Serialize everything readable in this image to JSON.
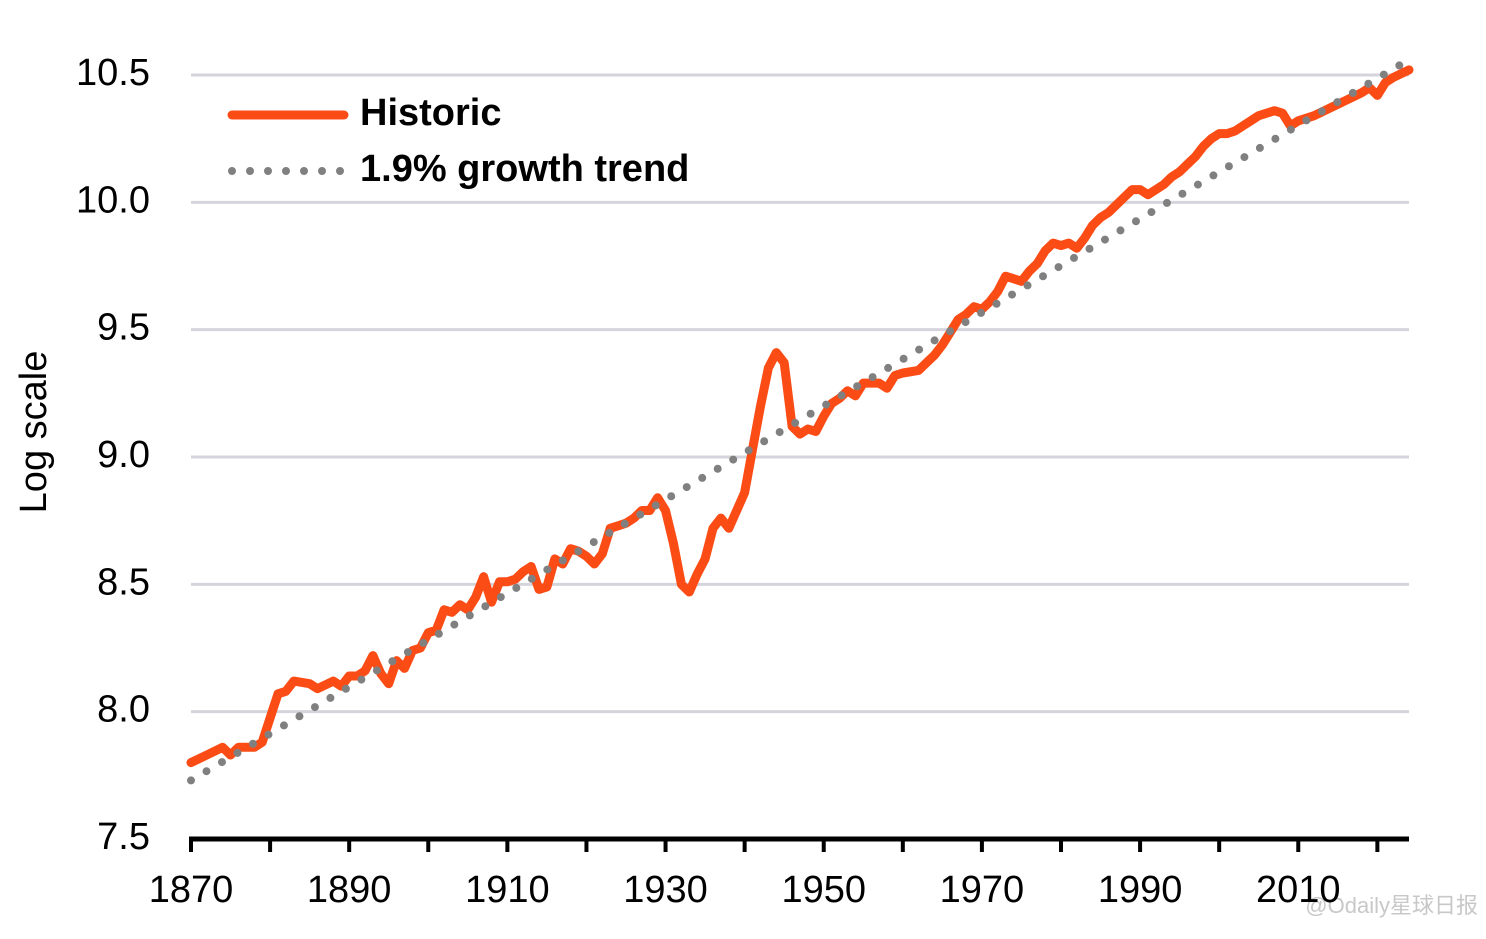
{
  "chart_data": {
    "type": "line",
    "y_label": "Log scale",
    "xlim": [
      1870,
      2024
    ],
    "ylim": [
      7.5,
      10.5
    ],
    "xticks": [
      1870,
      1890,
      1910,
      1930,
      1950,
      1970,
      1990,
      2010
    ],
    "x_minor_ticks": [
      1880,
      1900,
      1920,
      1940,
      1960,
      1980,
      2000,
      2020
    ],
    "yticks": [
      7.5,
      {
        "value": 8,
        "label": "8.0"
      },
      8.5,
      {
        "value": 9,
        "label": "9.0"
      },
      9.5,
      {
        "value": 10,
        "label": "10.0"
      },
      10.5
    ],
    "grid": true,
    "legend": "upper left",
    "watermark": "@Odaily星球日报",
    "series": [
      {
        "name": "Historic",
        "color": "#fc4c16",
        "style": "solid",
        "x": [
          1870,
          1872,
          1874,
          1875,
          1876,
          1878,
          1879,
          1881,
          1882,
          1883,
          1885,
          1886,
          1888,
          1889,
          1890,
          1891,
          1892,
          1893,
          1894,
          1895,
          1896,
          1897,
          1898,
          1899,
          1900,
          1901,
          1902,
          1903,
          1904,
          1905,
          1906,
          1907,
          1908,
          1909,
          1910,
          1911,
          1912,
          1913,
          1914,
          1915,
          1916,
          1917,
          1918,
          1919,
          1920,
          1921,
          1922,
          1923,
          1924,
          1925,
          1926,
          1927,
          1928,
          1929,
          1930,
          1931,
          1932,
          1933,
          1934,
          1935,
          1936,
          1937,
          1938,
          1939,
          1940,
          1941,
          1942,
          1943,
          1944,
          1945,
          1946,
          1947,
          1948,
          1949,
          1950,
          1951,
          1952,
          1953,
          1954,
          1955,
          1956,
          1957,
          1958,
          1959,
          1960,
          1962,
          1963,
          1964,
          1965,
          1966,
          1967,
          1968,
          1969,
          1970,
          1971,
          1972,
          1973,
          1974,
          1975,
          1976,
          1977,
          1978,
          1979,
          1980,
          1981,
          1982,
          1983,
          1984,
          1985,
          1986,
          1987,
          1988,
          1989,
          1990,
          1991,
          1992,
          1993,
          1994,
          1995,
          1996,
          1997,
          1998,
          1999,
          2000,
          2001,
          2002,
          2003,
          2004,
          2005,
          2006,
          2007,
          2008,
          2009,
          2010,
          2012,
          2014,
          2016,
          2018,
          2019,
          2020,
          2021,
          2022,
          2024
        ],
        "values": [
          7.8,
          7.83,
          7.86,
          7.83,
          7.86,
          7.86,
          7.88,
          8.07,
          8.08,
          8.12,
          8.11,
          8.09,
          8.12,
          8.1,
          8.14,
          8.14,
          8.16,
          8.22,
          8.15,
          8.11,
          8.2,
          8.17,
          8.24,
          8.25,
          8.31,
          8.32,
          8.4,
          8.39,
          8.42,
          8.4,
          8.45,
          8.53,
          8.43,
          8.51,
          8.51,
          8.52,
          8.55,
          8.57,
          8.48,
          8.49,
          8.6,
          8.58,
          8.64,
          8.63,
          8.61,
          8.58,
          8.62,
          8.72,
          8.73,
          8.74,
          8.76,
          8.79,
          8.79,
          8.84,
          8.79,
          8.66,
          8.5,
          8.47,
          8.54,
          8.6,
          8.72,
          8.76,
          8.72,
          8.79,
          8.86,
          9.03,
          9.2,
          9.35,
          9.41,
          9.37,
          9.12,
          9.09,
          9.11,
          9.1,
          9.16,
          9.21,
          9.23,
          9.26,
          9.24,
          9.29,
          9.29,
          9.29,
          9.27,
          9.32,
          9.33,
          9.34,
          9.37,
          9.4,
          9.44,
          9.49,
          9.54,
          9.56,
          9.59,
          9.58,
          9.61,
          9.65,
          9.71,
          9.7,
          9.69,
          9.73,
          9.76,
          9.81,
          9.84,
          9.83,
          9.84,
          9.82,
          9.86,
          9.91,
          9.94,
          9.96,
          9.99,
          10.02,
          10.05,
          10.05,
          10.03,
          10.05,
          10.07,
          10.1,
          10.12,
          10.15,
          10.18,
          10.22,
          10.25,
          10.27,
          10.27,
          10.28,
          10.3,
          10.32,
          10.34,
          10.35,
          10.36,
          10.35,
          10.3,
          10.32,
          10.34,
          10.37,
          10.4,
          10.43,
          10.45,
          10.42,
          10.47,
          10.49,
          10.52
        ]
      },
      {
        "name": "1.9% growth trend",
        "color": "#808080",
        "style": "dotted",
        "x": [
          1870,
          2024
        ],
        "values": [
          7.73,
          10.56
        ]
      }
    ]
  }
}
